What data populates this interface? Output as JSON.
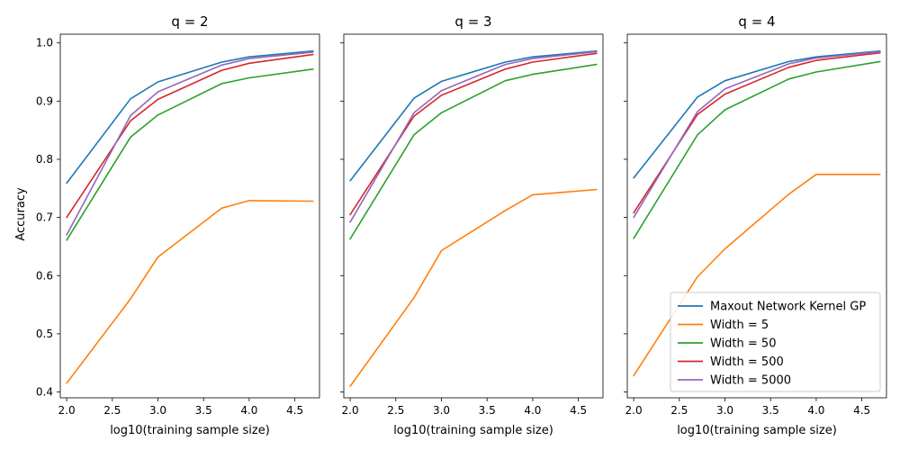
{
  "chart_data": {
    "type": "line",
    "ylabel": "Accuracy",
    "shared_y": true,
    "xlim": [
      1.93,
      4.77
    ],
    "ylim": [
      0.39,
      1.015
    ],
    "x_ticks": [
      2.0,
      2.5,
      3.0,
      3.5,
      4.0,
      4.5
    ],
    "x_tick_labels": [
      "2.0",
      "2.5",
      "3.0",
      "3.5",
      "4.0",
      "4.5"
    ],
    "y_ticks": [
      0.4,
      0.5,
      0.6,
      0.7,
      0.8,
      0.9,
      1.0
    ],
    "y_tick_labels": [
      "0.4",
      "0.5",
      "0.6",
      "0.7",
      "0.8",
      "0.9",
      "1.0"
    ],
    "legend_location": "lower-right of third panel",
    "legend": [
      {
        "name": "Maxout Network Kernel GP",
        "color": "#1f77b4"
      },
      {
        "name": "Width = 5",
        "color": "#ff7f0e"
      },
      {
        "name": "Width = 50",
        "color": "#2ca02c"
      },
      {
        "name": "Width = 500",
        "color": "#d62728"
      },
      {
        "name": "Width = 5000",
        "color": "#9467bd"
      }
    ],
    "panels": [
      {
        "title": "q = 2",
        "xlabel": "log10(training sample size)",
        "x": [
          2.0,
          2.699,
          3.0,
          3.699,
          4.0,
          4.699
        ],
        "series": [
          {
            "name": "Maxout Network Kernel GP",
            "color": "#1f77b4",
            "values": [
              0.759,
              0.904,
              0.933,
              0.967,
              0.976,
              0.986
            ]
          },
          {
            "name": "Width = 5",
            "color": "#ff7f0e",
            "values": [
              0.415,
              0.56,
              0.632,
              0.716,
              0.729,
              0.728
            ]
          },
          {
            "name": "Width = 50",
            "color": "#2ca02c",
            "values": [
              0.661,
              0.838,
              0.876,
              0.93,
              0.94,
              0.955
            ]
          },
          {
            "name": "Width = 500",
            "color": "#d62728",
            "values": [
              0.7,
              0.866,
              0.903,
              0.953,
              0.965,
              0.98
            ]
          },
          {
            "name": "Width = 5000",
            "color": "#9467bd",
            "values": [
              0.67,
              0.875,
              0.916,
              0.962,
              0.973,
              0.984
            ]
          }
        ]
      },
      {
        "title": "q = 3",
        "xlabel": "log10(training sample size)",
        "x": [
          2.0,
          2.699,
          3.0,
          3.699,
          4.0,
          4.699
        ],
        "series": [
          {
            "name": "Maxout Network Kernel GP",
            "color": "#1f77b4",
            "values": [
              0.763,
              0.905,
              0.934,
              0.967,
              0.976,
              0.986
            ]
          },
          {
            "name": "Width = 5",
            "color": "#ff7f0e",
            "values": [
              0.41,
              0.562,
              0.643,
              0.712,
              0.739,
              0.748
            ]
          },
          {
            "name": "Width = 50",
            "color": "#2ca02c",
            "values": [
              0.663,
              0.842,
              0.88,
              0.935,
              0.946,
              0.963
            ]
          },
          {
            "name": "Width = 500",
            "color": "#d62728",
            "values": [
              0.705,
              0.874,
              0.91,
              0.955,
              0.967,
              0.982
            ]
          },
          {
            "name": "Width = 5000",
            "color": "#9467bd",
            "values": [
              0.692,
              0.88,
              0.918,
              0.963,
              0.973,
              0.985
            ]
          }
        ]
      },
      {
        "title": "q = 4",
        "xlabel": "log10(training sample size)",
        "x": [
          2.0,
          2.699,
          3.0,
          3.699,
          4.0,
          4.699
        ],
        "series": [
          {
            "name": "Maxout Network Kernel GP",
            "color": "#1f77b4",
            "values": [
              0.768,
              0.907,
              0.935,
              0.968,
              0.976,
              0.986
            ]
          },
          {
            "name": "Width = 5",
            "color": "#ff7f0e",
            "values": [
              0.428,
              0.598,
              0.646,
              0.74,
              0.774,
              0.774
            ]
          },
          {
            "name": "Width = 50",
            "color": "#2ca02c",
            "values": [
              0.664,
              0.842,
              0.885,
              0.938,
              0.95,
              0.968
            ]
          },
          {
            "name": "Width = 500",
            "color": "#d62728",
            "values": [
              0.708,
              0.877,
              0.912,
              0.958,
              0.97,
              0.983
            ]
          },
          {
            "name": "Width = 5000",
            "color": "#9467bd",
            "values": [
              0.7,
              0.882,
              0.921,
              0.964,
              0.974,
              0.985
            ]
          }
        ]
      }
    ]
  }
}
